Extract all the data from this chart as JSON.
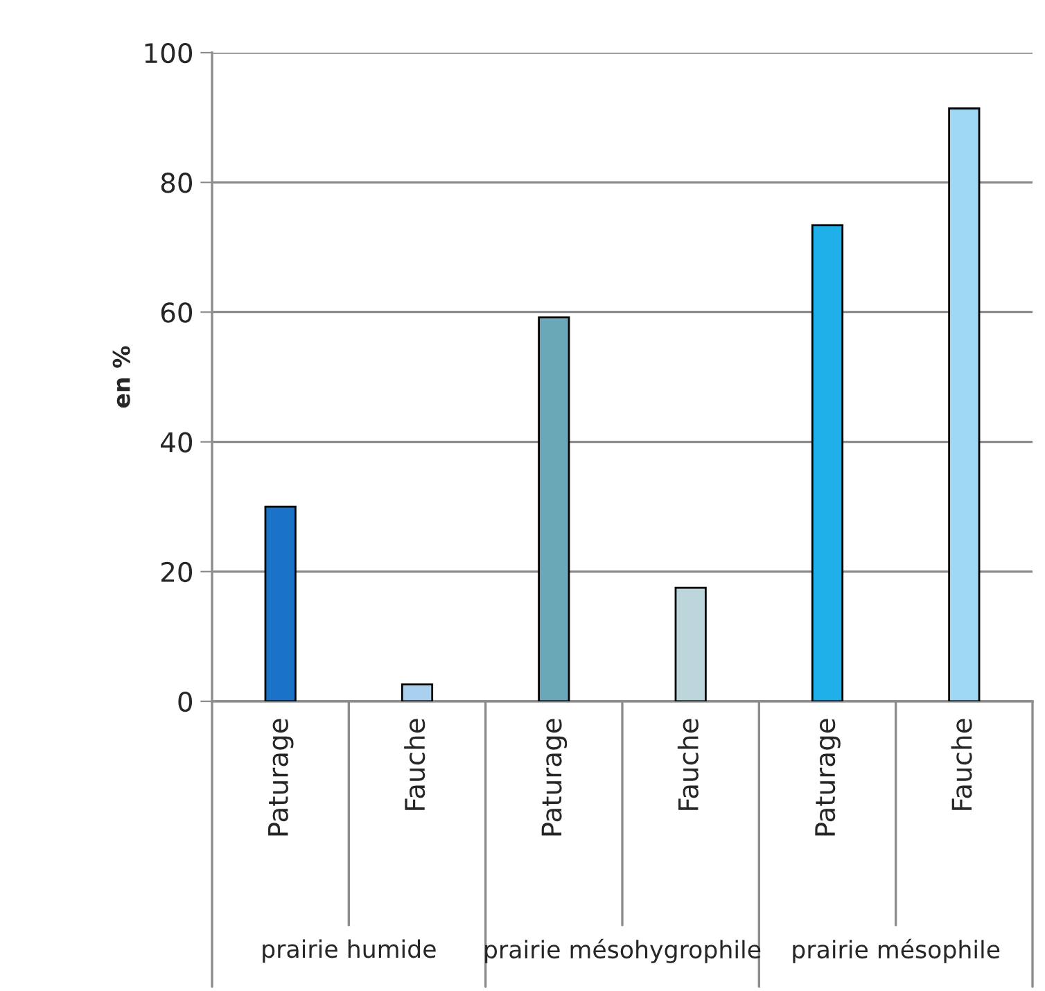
{
  "chart_data": {
    "type": "bar",
    "ylabel": "en %",
    "categories": [
      "Paturage",
      "Fauche",
      "Paturage",
      "Fauche",
      "Paturage",
      "Fauche"
    ],
    "values": [
      30,
      2.6,
      59.2,
      17.5,
      73.4,
      91.4
    ],
    "colors": [
      "#1a73c6",
      "#a9d0ee",
      "#6aa8b8",
      "#bcd6dc",
      "#1fb0ea",
      "#9fd8f4"
    ],
    "ylim": [
      0,
      100
    ],
    "yticks": [
      0,
      20,
      40,
      60,
      80,
      100
    ],
    "grid": "y",
    "annotations": [
      "prairie humide",
      "prairie mésohygrophile",
      "prairie mésophile"
    ]
  }
}
